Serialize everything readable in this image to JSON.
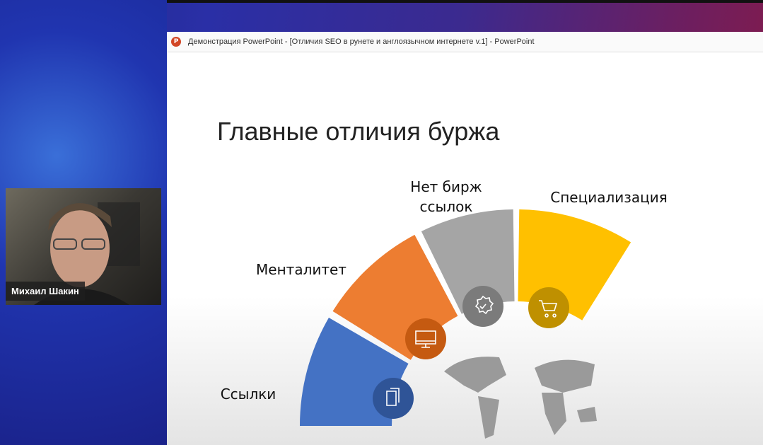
{
  "window": {
    "title": "Демонстрация PowerPoint - [Отличия SEO в рунете и англоязычном интернете v.1] - PowerPoint",
    "app_icon": "powerpoint-icon"
  },
  "slide": {
    "title": "Главные отличия буржа",
    "segments": [
      {
        "label": "Ссылки",
        "color": "#4472c4",
        "icon": "documents-icon"
      },
      {
        "label": "Менталитет",
        "color": "#ed7d31",
        "icon": "monitor-icon"
      },
      {
        "label": "Нет бирж ссылок",
        "color": "#a5a5a5",
        "icon": "badge-check-icon"
      },
      {
        "label": "Специализация",
        "color": "#ffc000",
        "icon": "shopping-cart-icon"
      }
    ],
    "map_icon": "world-map"
  },
  "video": {
    "name": "Михаил Шакин"
  }
}
